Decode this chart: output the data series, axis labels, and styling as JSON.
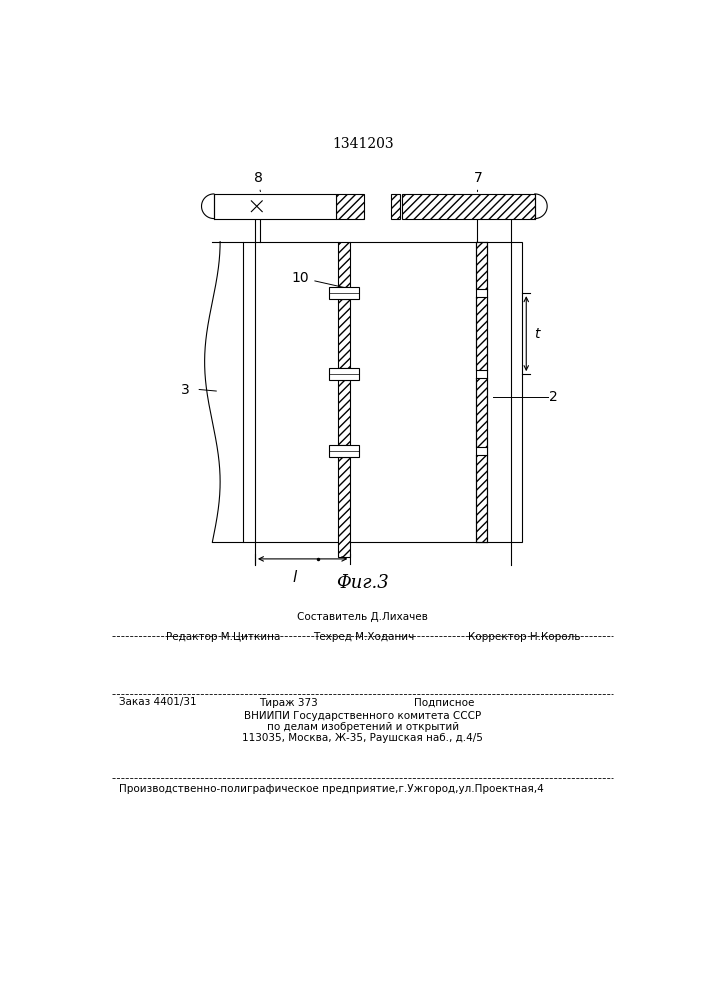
{
  "title": "1341203",
  "fig_caption": "Φиг.3",
  "bg_color": "#ffffff",
  "line_color": "#000000",
  "footer": {
    "line1": "Составитель Д.Лихачев",
    "line2_left": "Редактор М.Циткина",
    "line2_mid": "Техред М.Ходанич",
    "line2_right": "Корректор Н.Король",
    "line3_left": "Заказ 4401/31",
    "line3_mid": "Тираж 373",
    "line3_right": "Подписное",
    "line4": "ВНИИПИ Государственного комитета СССР",
    "line5": "по делам изобретений и открытий",
    "line6": "113035, Москва, Ж-35, Раушская наб., д.4/5",
    "line7": "Производственно-полиграфическое предприятие,г.Ужгород,ул.Проектная,4"
  }
}
